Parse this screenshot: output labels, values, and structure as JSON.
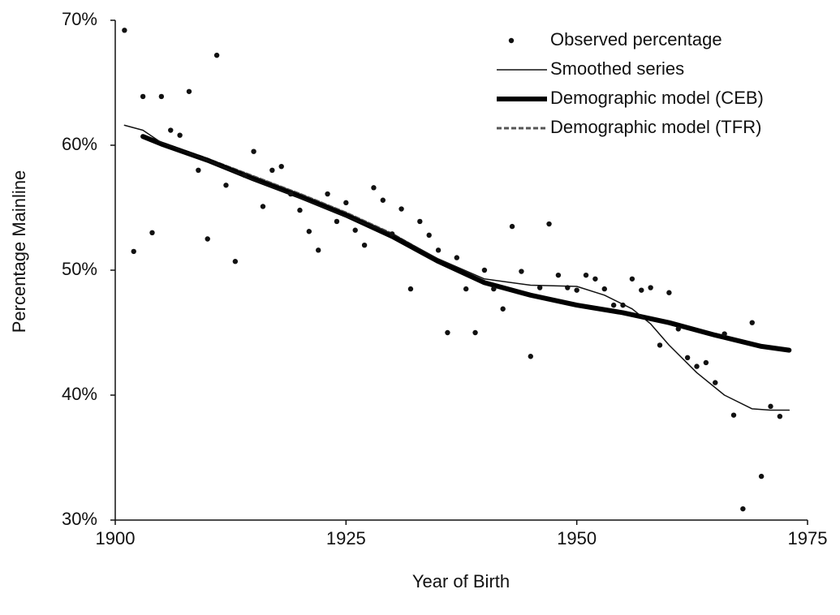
{
  "chart_data": {
    "type": "scatter-line",
    "x_label": "Year of Birth",
    "y_label": "Percentage Mainline",
    "xlim": [
      1900,
      1975
    ],
    "xticks": [
      1900,
      1925,
      1950,
      1975
    ],
    "ylim": [
      30,
      70
    ],
    "yticks": [
      {
        "value": 30,
        "label": "30%"
      },
      {
        "value": 40,
        "label": "40%"
      },
      {
        "value": 50,
        "label": "50%"
      },
      {
        "value": 60,
        "label": "60%"
      },
      {
        "value": 70,
        "label": "70%"
      }
    ],
    "legend": "upper right",
    "series": [
      {
        "name": "Observed percentage",
        "kind": "points",
        "color": "#111111",
        "x": [
          1901,
          1902,
          1903,
          1904,
          1905,
          1906,
          1907,
          1908,
          1909,
          1910,
          1911,
          1912,
          1913,
          1914,
          1915,
          1916,
          1917,
          1918,
          1919,
          1920,
          1921,
          1922,
          1923,
          1924,
          1925,
          1926,
          1927,
          1928,
          1929,
          1930,
          1931,
          1932,
          1933,
          1934,
          1935,
          1936,
          1937,
          1938,
          1939,
          1940,
          1941,
          1942,
          1943,
          1944,
          1945,
          1946,
          1947,
          1948,
          1949,
          1950,
          1951,
          1952,
          1953,
          1954,
          1955,
          1956,
          1957,
          1958,
          1959,
          1960,
          1961,
          1962,
          1963,
          1964,
          1965,
          1966,
          1967,
          1968,
          1969,
          1970,
          1971,
          1972
        ],
        "values": [
          69.2,
          51.5,
          63.9,
          53.0,
          63.9,
          61.2,
          60.8,
          64.3,
          58.0,
          52.5,
          67.2,
          56.8,
          50.7,
          57.6,
          59.5,
          55.1,
          58.0,
          58.3,
          56.1,
          54.8,
          53.1,
          51.6,
          56.1,
          53.9,
          55.4,
          53.2,
          52.0,
          56.6,
          55.6,
          52.9,
          54.9,
          48.5,
          53.9,
          52.8,
          51.6,
          45.0,
          51.0,
          48.5,
          45.0,
          50.0,
          48.5,
          46.9,
          53.5,
          49.9,
          43.1,
          48.6,
          53.7,
          49.6,
          48.6,
          48.4,
          49.6,
          49.3,
          48.5,
          47.2,
          47.2,
          49.3,
          48.4,
          48.6,
          44.0,
          48.2,
          45.3,
          43.0,
          42.3,
          42.6,
          41.0,
          44.9,
          38.4,
          30.9,
          45.8,
          33.5,
          39.1,
          38.3
        ]
      },
      {
        "name": "Smoothed series",
        "kind": "line",
        "color": "#111111",
        "width": 1.5,
        "x": [
          1901,
          1903,
          1905,
          1910,
          1915,
          1920,
          1925,
          1930,
          1935,
          1940,
          1945,
          1950,
          1953,
          1956,
          1958,
          1960,
          1963,
          1966,
          1969,
          1971,
          1973
        ],
        "values": [
          61.6,
          61.2,
          60.2,
          58.8,
          57.2,
          55.8,
          54.3,
          52.9,
          50.9,
          49.3,
          48.8,
          48.7,
          48.0,
          46.9,
          45.7,
          44.0,
          41.8,
          40.0,
          38.9,
          38.8,
          38.8
        ]
      },
      {
        "name": "Demographic model (CEB)",
        "kind": "line",
        "color": "#000000",
        "width": 6,
        "x": [
          1903,
          1905,
          1910,
          1915,
          1920,
          1925,
          1930,
          1935,
          1940,
          1945,
          1950,
          1955,
          1960,
          1965,
          1970,
          1973
        ],
        "values": [
          60.7,
          60.1,
          58.8,
          57.3,
          55.9,
          54.4,
          52.7,
          50.7,
          49.0,
          48.0,
          47.2,
          46.6,
          45.8,
          44.8,
          43.9,
          43.6
        ]
      },
      {
        "name": "Demographic model (TFR)",
        "kind": "dashed",
        "color": "#555555",
        "width": 3,
        "x": [
          1903,
          1905,
          1910,
          1915,
          1920,
          1925,
          1930,
          1935,
          1940,
          1945,
          1950,
          1955,
          1960,
          1965,
          1970,
          1973
        ],
        "values": [
          60.6,
          60.2,
          58.9,
          57.5,
          56.1,
          54.6,
          52.9,
          50.8,
          49.0,
          48.0,
          47.2,
          46.6,
          45.8,
          44.8,
          43.9,
          43.6
        ]
      }
    ]
  }
}
